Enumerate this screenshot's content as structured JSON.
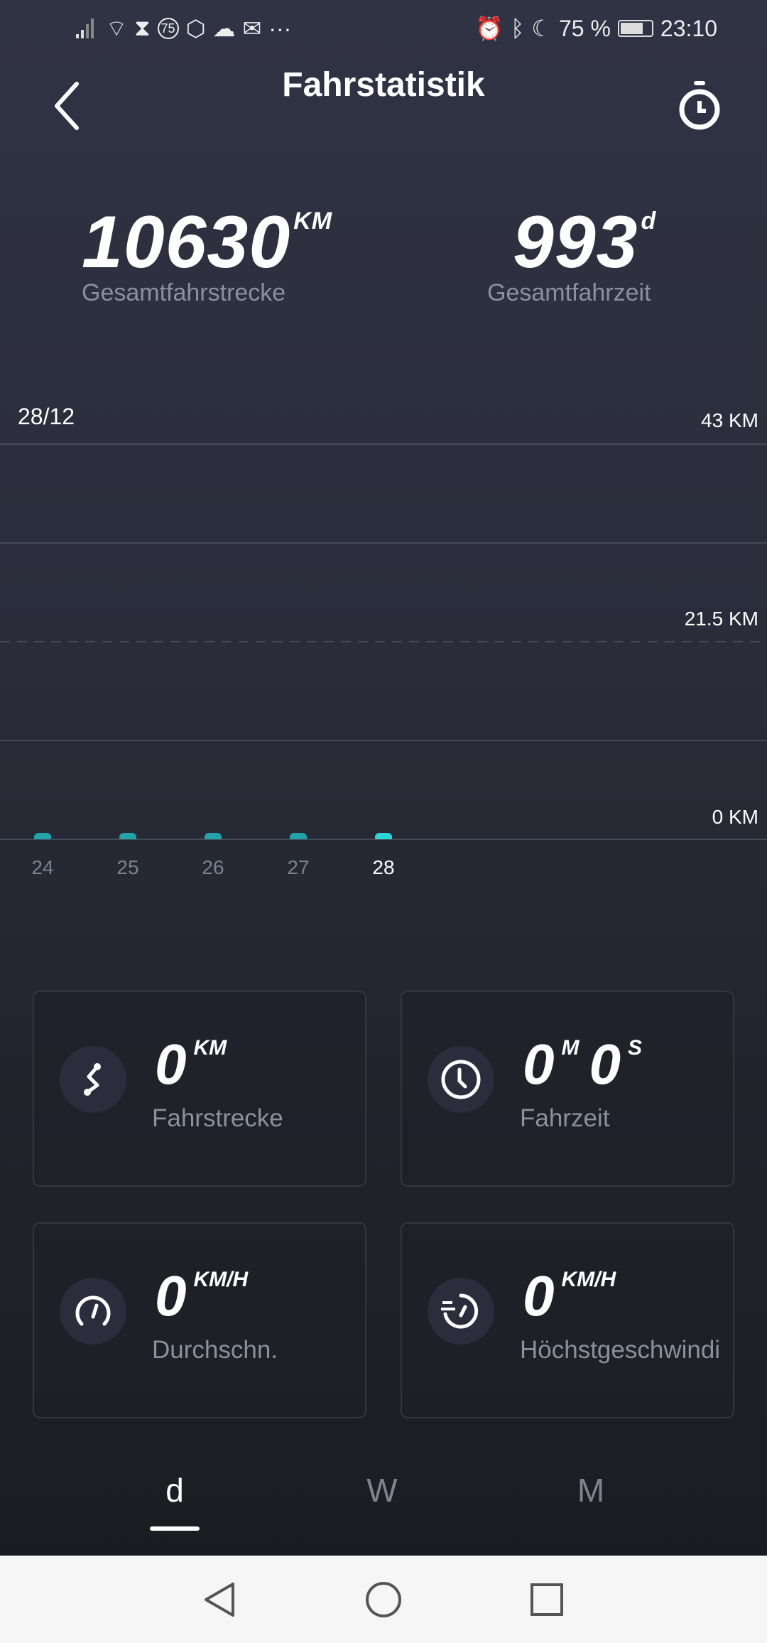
{
  "status_bar": {
    "notif_badge": "75",
    "more": "···",
    "battery": "75 %",
    "time": "23:10"
  },
  "header": {
    "title": "Fahrstatistik",
    "back_icon": "chevron-left-icon",
    "timer_icon": "stopwatch-icon"
  },
  "totals": [
    {
      "value": "10630",
      "unit": "KM",
      "label": "Gesamtfahrstrecke"
    },
    {
      "value": "993",
      "unit": "d",
      "label": "Gesamtfahrzeit"
    }
  ],
  "chart": {
    "date": "28/12"
  },
  "chart_data": {
    "type": "bar",
    "categories": [
      "24",
      "25",
      "26",
      "27",
      "28"
    ],
    "values": [
      0,
      0,
      0,
      0,
      0
    ],
    "selected": "28",
    "ylim": [
      0,
      43
    ],
    "y_ticks": [
      "43 KM",
      "21.5 KM",
      "0 KM"
    ],
    "bar_color": "#22a3a8",
    "selected_color": "#2ad6d8"
  },
  "cards": [
    {
      "value": "0",
      "unit": "KM",
      "label": "Fahrstrecke",
      "icon": "route-icon"
    },
    {
      "value": "0",
      "unit": "M",
      "value2": "0",
      "unit2": "S",
      "label": "Fahrzeit",
      "icon": "clock-icon"
    },
    {
      "value": "0",
      "unit": "KM/H",
      "label": "Durchschn.",
      "icon": "speedometer-icon"
    },
    {
      "value": "0",
      "unit": "KM/H",
      "label": "Höchstgeschwindi",
      "icon": "max-speed-icon"
    }
  ],
  "tabs": [
    {
      "label": "d",
      "active": true
    },
    {
      "label": "W"
    },
    {
      "label": "M"
    }
  ]
}
